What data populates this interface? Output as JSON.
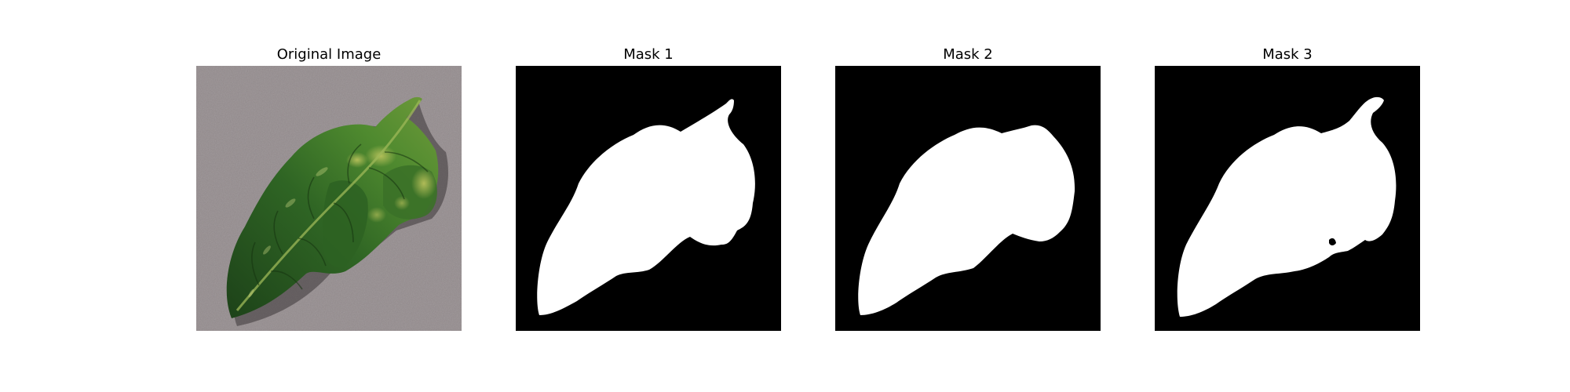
{
  "figure": {
    "panels": [
      {
        "title": "Original Image",
        "kind": "photo",
        "subject": "leaf-photo"
      },
      {
        "title": "Mask 1",
        "kind": "mask"
      },
      {
        "title": "Mask 2",
        "kind": "mask"
      },
      {
        "title": "Mask 3",
        "kind": "mask"
      }
    ]
  },
  "colors": {
    "page_background": "#ffffff",
    "mask_background": "#000000",
    "mask_foreground": "#ffffff",
    "photo_background": "#8c8486",
    "leaf_dark": "#1f4a1c",
    "leaf_mid": "#3f7a2c",
    "leaf_light": "#a3b84a"
  }
}
